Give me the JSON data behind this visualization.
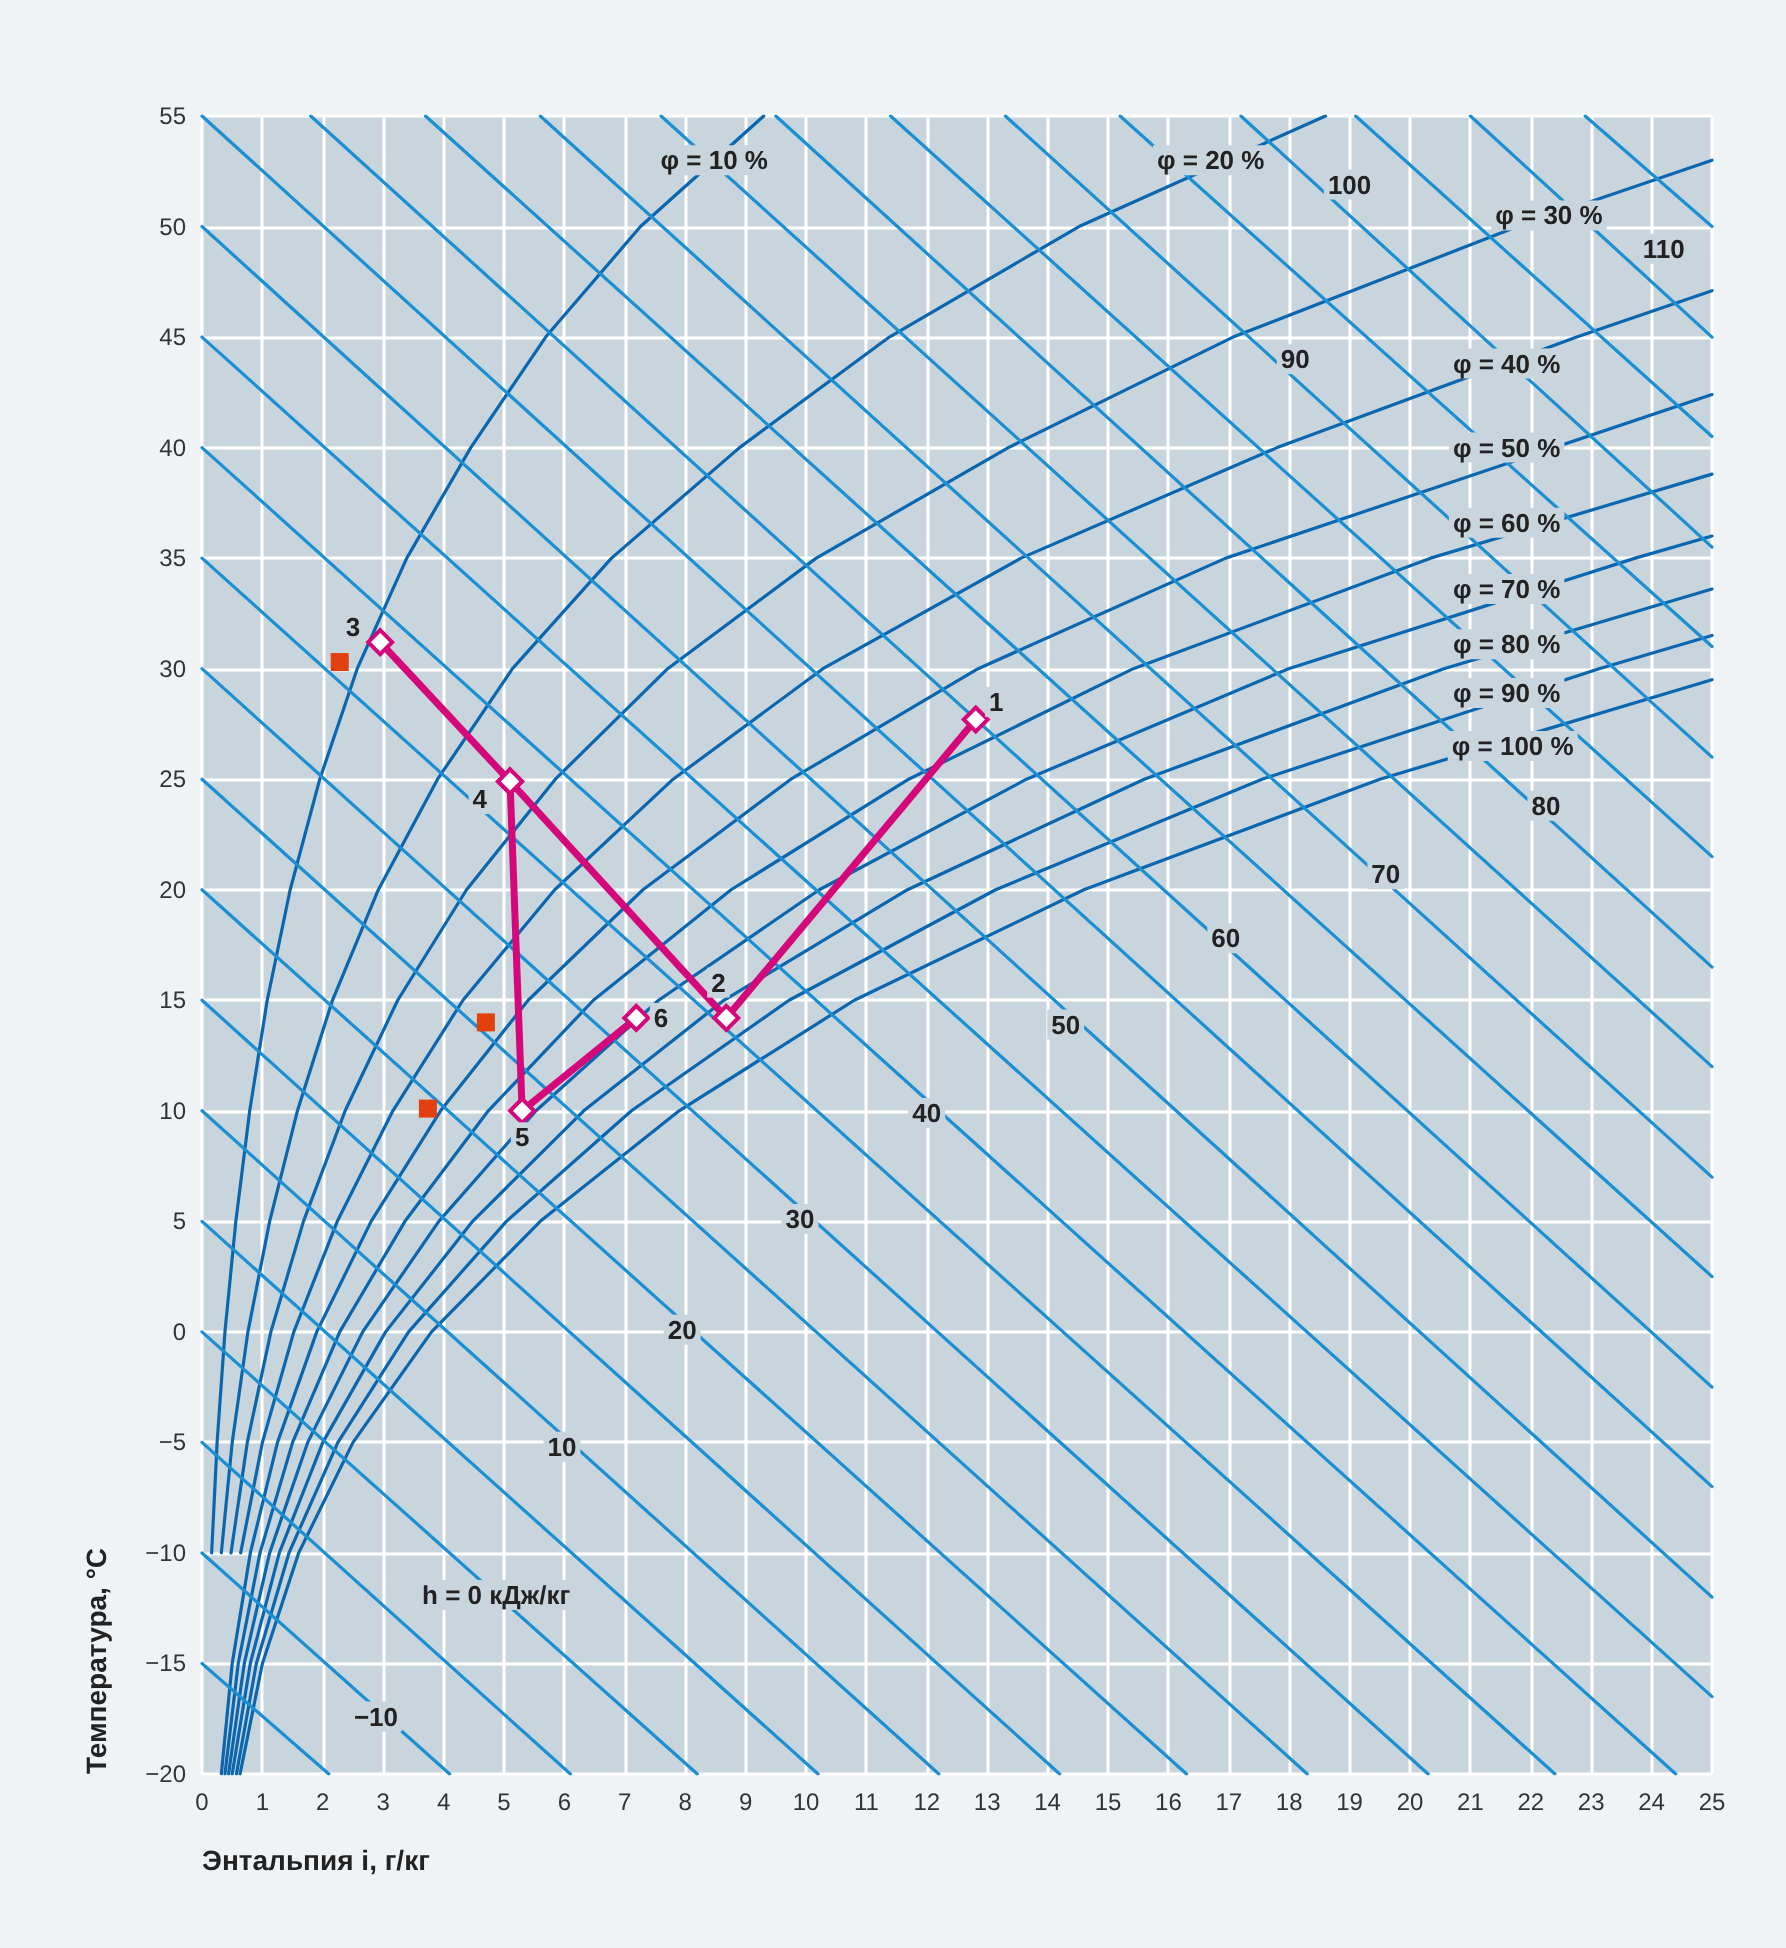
{
  "chart_data": {
    "type": "line",
    "xlabel": "Энтальпия i, г/кг",
    "ylabel": "Температура, °C",
    "xlim": [
      0,
      25
    ],
    "xticks": [
      0,
      1,
      2,
      3,
      4,
      5,
      6,
      7,
      8,
      9,
      10,
      11,
      12,
      13,
      14,
      15,
      16,
      17,
      18,
      19,
      20,
      21,
      22,
      23,
      24,
      25
    ],
    "ylim": [
      -20,
      55
    ],
    "yticks": [
      {
        "value": -20,
        "label": "−20"
      },
      {
        "value": -15,
        "label": "−15"
      },
      {
        "value": -10,
        "label": "−10"
      },
      {
        "value": -5,
        "label": "−5"
      },
      0,
      5,
      10,
      15,
      20,
      25,
      30,
      35,
      40,
      45,
      50,
      55
    ],
    "grid": true,
    "marker": "none",
    "line_style": "solid",
    "series": [
      {
        "color": "#0b66b0",
        "x": [
          0.16,
          0.25,
          0.38,
          0.56,
          0.79,
          1.08,
          1.46,
          1.95,
          2.57,
          3.39,
          4.45,
          5.69,
          7.26,
          9.3
        ],
        "values": [
          -10,
          -5,
          0,
          5,
          10,
          15,
          20,
          25,
          30,
          35,
          40,
          45,
          50,
          55
        ]
      },
      {
        "color": "#0b66b0",
        "x": [
          0.32,
          0.5,
          0.76,
          1.12,
          1.58,
          2.16,
          2.92,
          3.9,
          5.14,
          6.78,
          8.9,
          11.38,
          14.52,
          18.6
        ],
        "values": [
          -10,
          -5,
          0,
          5,
          10,
          15,
          20,
          25,
          30,
          35,
          40,
          45,
          50,
          55
        ]
      },
      {
        "color": "#0b66b0",
        "x": [
          0.48,
          0.75,
          1.14,
          1.68,
          2.37,
          3.24,
          4.38,
          5.85,
          7.71,
          10.17,
          13.35,
          17.07,
          21.78,
          25
        ],
        "values": [
          -10,
          -5,
          0,
          5,
          10,
          15,
          20,
          25,
          30,
          35,
          40,
          45,
          50,
          53
        ]
      },
      {
        "color": "#0b66b0",
        "x": [
          0.64,
          1.0,
          1.52,
          2.24,
          3.16,
          4.32,
          5.84,
          7.8,
          10.28,
          13.56,
          17.8,
          22.76,
          25
        ],
        "values": [
          -10,
          -5,
          0,
          5,
          10,
          15,
          20,
          25,
          30,
          35,
          40,
          45,
          47.1
        ]
      },
      {
        "color": "#0b66b0",
        "x": [
          0.32,
          0.5,
          0.8,
          1.25,
          1.9,
          2.8,
          3.95,
          5.4,
          7.3,
          9.75,
          12.85,
          16.95,
          25
        ],
        "values": [
          -20,
          -15,
          -10,
          -5,
          0,
          5,
          10,
          15,
          20,
          25,
          30,
          35,
          42.4
        ]
      },
      {
        "color": "#0b66b0",
        "x": [
          0.38,
          0.6,
          0.96,
          1.5,
          2.28,
          3.36,
          4.74,
          6.48,
          8.76,
          11.7,
          15.42,
          20.34,
          25
        ],
        "values": [
          -20,
          -15,
          -10,
          -5,
          0,
          5,
          10,
          15,
          20,
          25,
          30,
          35,
          38.8
        ]
      },
      {
        "color": "#0b66b0",
        "x": [
          0.44,
          0.7,
          1.12,
          1.75,
          2.66,
          3.92,
          5.53,
          7.56,
          10.22,
          13.65,
          17.99,
          23.73,
          25
        ],
        "values": [
          -20,
          -15,
          -10,
          -5,
          0,
          5,
          10,
          15,
          20,
          25,
          30,
          35,
          36
        ]
      },
      {
        "color": "#0b66b0",
        "x": [
          0.5,
          0.8,
          1.28,
          2.0,
          3.04,
          4.48,
          6.32,
          8.64,
          11.68,
          15.6,
          20.56,
          25
        ],
        "values": [
          -20,
          -15,
          -10,
          -5,
          0,
          5,
          10,
          15,
          20,
          25,
          30,
          33.6
        ]
      },
      {
        "color": "#0b66b0",
        "x": [
          0.57,
          0.9,
          1.44,
          2.25,
          3.42,
          5.04,
          7.11,
          9.72,
          13.14,
          17.55,
          23.13,
          25
        ],
        "values": [
          -20,
          -15,
          -10,
          -5,
          0,
          5,
          10,
          15,
          20,
          25,
          30,
          31.5
        ]
      },
      {
        "color": "#0b66b0",
        "x": [
          0.63,
          1.0,
          1.6,
          2.5,
          3.8,
          5.6,
          7.9,
          10.8,
          14.6,
          19.5,
          25
        ],
        "values": [
          -20,
          -15,
          -10,
          -5,
          0,
          5,
          10,
          15,
          20,
          25,
          29.5
        ]
      },
      {
        "color": "#1b8fd2",
        "x": [
          0,
          2.1
        ],
        "values": [
          -15,
          -20
        ]
      },
      {
        "color": "#1b8fd2",
        "x": [
          0,
          4.1
        ],
        "values": [
          -10,
          -20
        ]
      },
      {
        "color": "#1b8fd2",
        "x": [
          0,
          6.1
        ],
        "values": [
          -5,
          -20
        ]
      },
      {
        "color": "#1b8fd2",
        "x": [
          0,
          8.2
        ],
        "values": [
          0,
          -20
        ]
      },
      {
        "color": "#1b8fd2",
        "x": [
          0,
          10.2
        ],
        "values": [
          5,
          -20
        ]
      },
      {
        "color": "#1b8fd2",
        "x": [
          0,
          12.2
        ],
        "values": [
          10,
          -20
        ]
      },
      {
        "color": "#1b8fd2",
        "x": [
          0,
          14.2
        ],
        "values": [
          15,
          -20
        ]
      },
      {
        "color": "#1b8fd2",
        "x": [
          0,
          16.3
        ],
        "values": [
          20,
          -20
        ]
      },
      {
        "color": "#1b8fd2",
        "x": [
          0,
          18.3
        ],
        "values": [
          25,
          -20
        ]
      },
      {
        "color": "#1b8fd2",
        "x": [
          0,
          20.3
        ],
        "values": [
          30,
          -20
        ]
      },
      {
        "color": "#1b8fd2",
        "x": [
          0,
          22.4
        ],
        "values": [
          35,
          -20
        ]
      },
      {
        "color": "#1b8fd2",
        "x": [
          0,
          24.4
        ],
        "values": [
          40,
          -20
        ]
      },
      {
        "color": "#1b8fd2",
        "x": [
          0,
          25
        ],
        "values": [
          45,
          -16.5
        ]
      },
      {
        "color": "#1b8fd2",
        "x": [
          0,
          25
        ],
        "values": [
          50,
          -12
        ]
      },
      {
        "color": "#1b8fd2",
        "x": [
          0,
          25
        ],
        "values": [
          55,
          -7
        ]
      },
      {
        "color": "#1b8fd2",
        "x": [
          1.8,
          25
        ],
        "values": [
          55,
          -2.5
        ]
      },
      {
        "color": "#1b8fd2",
        "x": [
          3.7,
          25
        ],
        "values": [
          55,
          2.5
        ]
      },
      {
        "color": "#1b8fd2",
        "x": [
          5.6,
          25
        ],
        "values": [
          55,
          7
        ]
      },
      {
        "color": "#1b8fd2",
        "x": [
          7.6,
          25
        ],
        "values": [
          55,
          12
        ]
      },
      {
        "color": "#1b8fd2",
        "x": [
          9.5,
          25
        ],
        "values": [
          55,
          16.5
        ]
      },
      {
        "color": "#1b8fd2",
        "x": [
          11.4,
          25
        ],
        "values": [
          55,
          21.5
        ]
      },
      {
        "color": "#1b8fd2",
        "x": [
          13.3,
          25
        ],
        "values": [
          55,
          26
        ]
      },
      {
        "color": "#1b8fd2",
        "x": [
          15.2,
          25
        ],
        "values": [
          55,
          31
        ]
      },
      {
        "color": "#1b8fd2",
        "x": [
          17.2,
          25
        ],
        "values": [
          55,
          35.5
        ]
      },
      {
        "color": "#1b8fd2",
        "x": [
          19.1,
          25
        ],
        "values": [
          55,
          40.5
        ]
      },
      {
        "color": "#1b8fd2",
        "x": [
          21,
          25
        ],
        "values": [
          55,
          45
        ]
      },
      {
        "color": "#1b8fd2",
        "x": [
          22.9,
          25
        ],
        "values": [
          55,
          50
        ]
      },
      {
        "type": "scatter",
        "color": "#e2400e",
        "marker": "square",
        "x": [
          2.28,
          4.7,
          3.74
        ],
        "values": [
          30.3,
          14.0,
          10.1
        ]
      },
      {
        "color": "#d4087a",
        "marker": "diamond",
        "x": [
          2.95,
          5.1,
          8.68,
          12.81,
          null,
          5.1,
          5.3,
          7.19
        ],
        "values": [
          31.2,
          24.9,
          14.2,
          27.7,
          null,
          24.9,
          10.0,
          14.2
        ]
      }
    ],
    "annotations": [
      {
        "text": "φ = 10 %",
        "x": 8.48,
        "y": 53.0
      },
      {
        "text": "φ = 20 %",
        "x": 16.7,
        "y": 53.0
      },
      {
        "text": "φ = 30 %",
        "x": 22.3,
        "y": 50.5
      },
      {
        "text": "φ = 40 %",
        "x": 21.6,
        "y": 43.8
      },
      {
        "text": "φ = 50 %",
        "x": 21.6,
        "y": 40.0
      },
      {
        "text": "φ = 60 %",
        "x": 21.6,
        "y": 36.6
      },
      {
        "text": "φ = 70 %",
        "x": 21.6,
        "y": 33.6
      },
      {
        "text": "φ = 80 %",
        "x": 21.6,
        "y": 31.1
      },
      {
        "text": "φ = 90 %",
        "x": 21.6,
        "y": 28.9
      },
      {
        "text": "φ = 100 %",
        "x": 21.7,
        "y": 26.5
      },
      {
        "text": "110",
        "x": 24.2,
        "y": 49.0
      },
      {
        "text": "100",
        "x": 19.0,
        "y": 51.9
      },
      {
        "text": "90",
        "x": 18.1,
        "y": 44.0
      },
      {
        "text": "80",
        "x": 22.25,
        "y": 23.8
      },
      {
        "text": "70",
        "x": 19.6,
        "y": 20.7
      },
      {
        "text": "60",
        "x": 16.95,
        "y": 17.8
      },
      {
        "text": "50",
        "x": 14.3,
        "y": 13.9
      },
      {
        "text": "40",
        "x": 12.0,
        "y": 9.9
      },
      {
        "text": "30",
        "x": 9.9,
        "y": 5.1
      },
      {
        "text": "20",
        "x": 7.95,
        "y": 0.1
      },
      {
        "text": "10",
        "x": 5.96,
        "y": -5.2
      },
      {
        "text": "h = 0 кДж/кг",
        "x": 4.87,
        "y": -11.9
      },
      {
        "text": "−10",
        "x": 2.88,
        "y": -17.4
      },
      {
        "text": "1",
        "x": 13.15,
        "y": 28.5
      },
      {
        "text": "2",
        "x": 8.55,
        "y": 15.8
      },
      {
        "text": "3",
        "x": 2.5,
        "y": 31.9
      },
      {
        "text": "4",
        "x": 4.6,
        "y": 24.1
      },
      {
        "text": "5",
        "x": 5.3,
        "y": 8.8
      },
      {
        "text": "6",
        "x": 7.6,
        "y": 14.2
      }
    ]
  }
}
